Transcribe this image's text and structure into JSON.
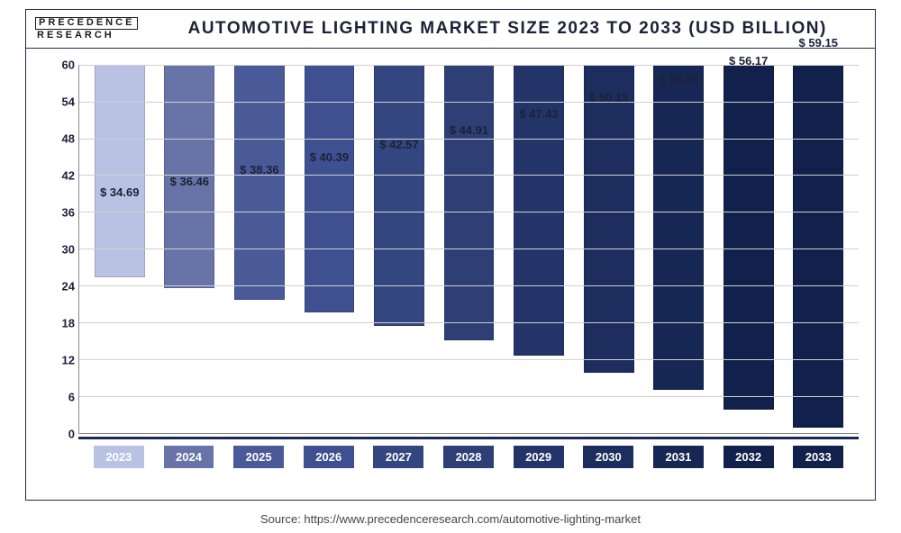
{
  "logo": {
    "top": "PRECEDENCE",
    "bottom": "RESEARCH"
  },
  "chart": {
    "type": "bar",
    "title": "AUTOMOTIVE LIGHTING MARKET SIZE 2023 TO 2033 (USD BILLION)",
    "title_fontsize": 19,
    "title_color": "#1c2137",
    "background_color": "#ffffff",
    "grid_color": "#d0d0d0",
    "axis_color": "#8a8a8a",
    "label_fontsize": 13,
    "ylim": [
      0,
      60
    ],
    "ytick_step": 6,
    "yticks": [
      0,
      6,
      12,
      18,
      24,
      30,
      36,
      42,
      48,
      54,
      60
    ],
    "bar_width": 0.72,
    "categories": [
      "2023",
      "2024",
      "2025",
      "2026",
      "2027",
      "2028",
      "2029",
      "2030",
      "2031",
      "2032",
      "2033"
    ],
    "values": [
      34.69,
      36.46,
      38.36,
      40.39,
      42.57,
      44.91,
      47.43,
      50.13,
      53.03,
      56.17,
      59.15
    ],
    "value_labels": [
      "$ 34.69",
      "$ 36.46",
      "$ 38.36",
      "$ 40.39",
      "$ 42.57",
      "$ 44.91",
      "$ 47.43",
      "$ 50.13",
      "$ 53.03",
      "$ 56.17",
      "$ 59.15"
    ],
    "bar_colors": [
      "#b9c2e3",
      "#6874a8",
      "#4a5a98",
      "#3f5090",
      "#34467f",
      "#2d3f75",
      "#233468",
      "#1c2d5e",
      "#162754",
      "#11214b",
      "#11214b"
    ],
    "xlabel_bg_colors": [
      "#b9c2e3",
      "#6874a8",
      "#4a5a98",
      "#3f5090",
      "#34467f",
      "#2d3f75",
      "#233468",
      "#1c2d5e",
      "#162754",
      "#11214b",
      "#11214b"
    ],
    "xaxis_divider_color": "#1c2a5a"
  },
  "source": "Source: https://www.precedenceresearch.com/automotive-lighting-market"
}
